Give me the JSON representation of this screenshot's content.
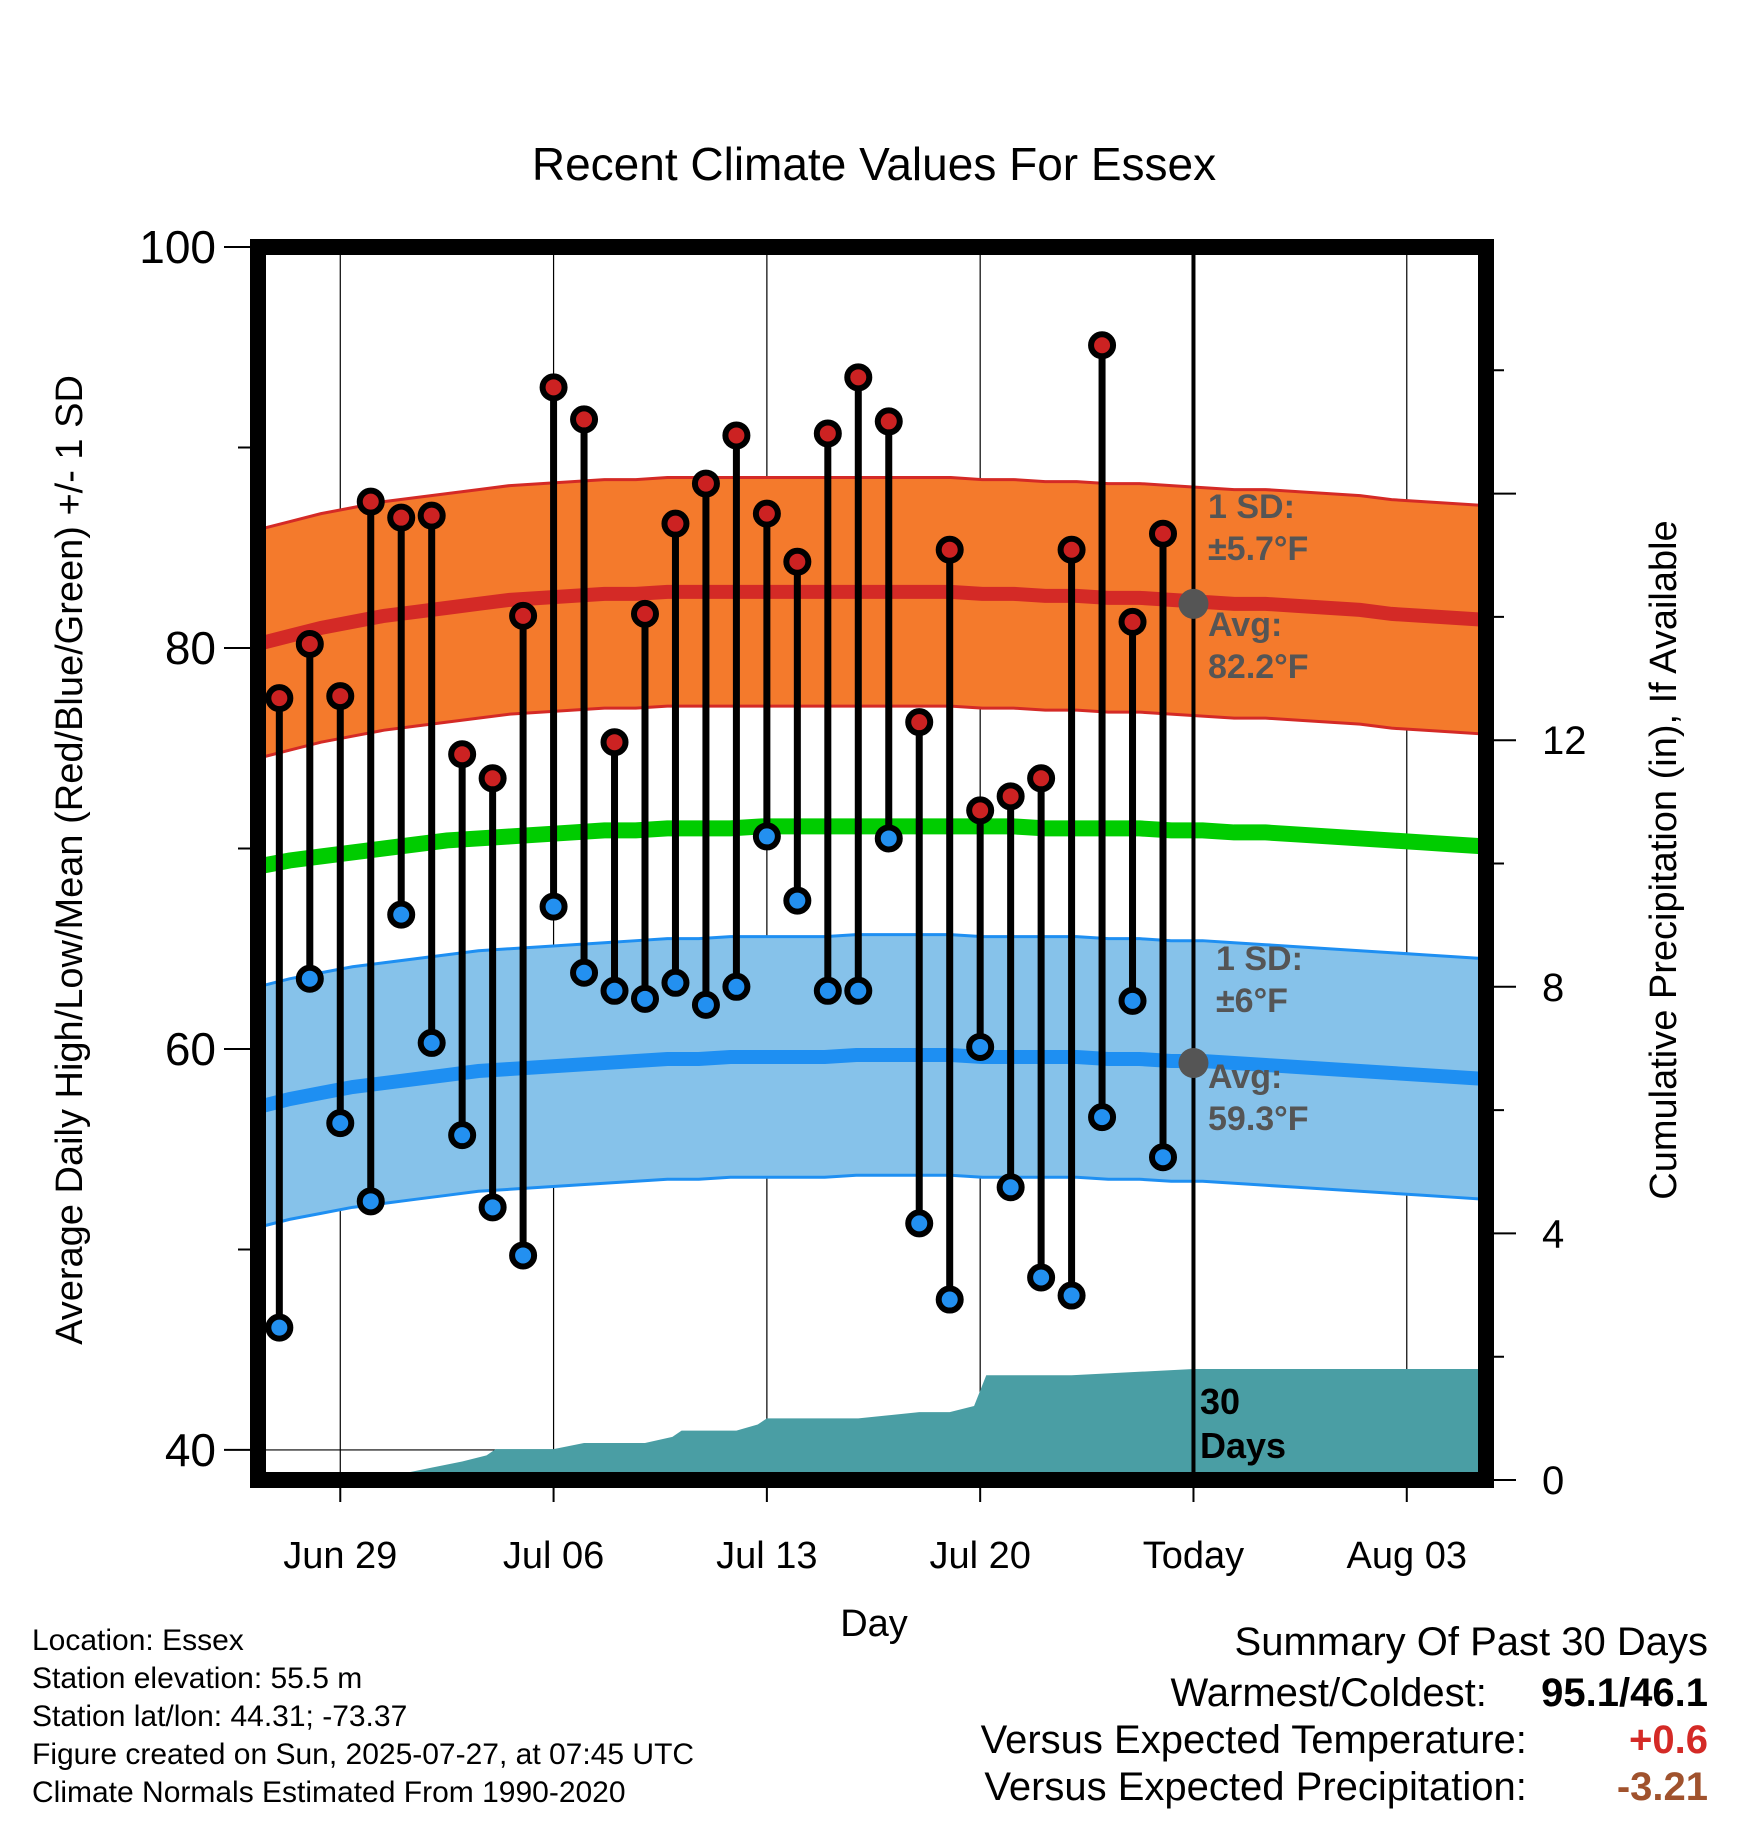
{
  "chart_data": {
    "type": "line",
    "title": "Recent Climate Values For Essex",
    "xlabel": "Day",
    "ylabel": "Average Daily High/Low/Mean (Red/Blue/Green) +/- 1 SD",
    "y2label": "Cumulative Precipitation (in), If Available",
    "ylim": [
      38.5,
      100
    ],
    "y2lim": [
      0,
      20
    ],
    "y_ticks": [
      40,
      60,
      80,
      100
    ],
    "y2_ticks": [
      0,
      4,
      8,
      12
    ],
    "x_tick_labels": [
      "Jun 29",
      "Jul 06",
      "Jul 13",
      "Jul 20",
      "Today",
      "Aug 03"
    ],
    "x_tick_days": [
      0,
      7,
      14,
      21,
      28,
      35
    ],
    "today_day": 28,
    "xlim": [
      -2.7,
      37.6
    ],
    "grid": true,
    "days": [
      -2,
      -1,
      0,
      1,
      2,
      3,
      4,
      5,
      6,
      7,
      8,
      9,
      10,
      11,
      12,
      13,
      14,
      15,
      16,
      17,
      18,
      19,
      20,
      21,
      22,
      23,
      24,
      25,
      26,
      27
    ],
    "daily_high": [
      77.5,
      80.2,
      77.6,
      87.3,
      86.5,
      86.6,
      74.7,
      73.5,
      81.6,
      93.0,
      91.4,
      75.3,
      81.7,
      86.2,
      88.2,
      90.6,
      86.7,
      84.3,
      90.7,
      93.5,
      91.3,
      76.3,
      84.9,
      71.9,
      72.6,
      73.5,
      84.9,
      95.1,
      81.3,
      85.7
    ],
    "daily_low": [
      46.1,
      63.5,
      56.3,
      52.4,
      66.7,
      60.3,
      55.7,
      52.1,
      49.7,
      67.1,
      63.8,
      62.9,
      62.5,
      63.3,
      62.2,
      63.1,
      70.6,
      67.4,
      62.9,
      62.9,
      70.5,
      51.3,
      47.5,
      60.1,
      53.1,
      48.6,
      47.7,
      56.6,
      62.4,
      54.6
    ],
    "normal_high": [
      80.2,
      80.6,
      81.0,
      81.3,
      81.6,
      81.8,
      82.0,
      82.2,
      82.4,
      82.5,
      82.6,
      82.7,
      82.7,
      82.8,
      82.8,
      82.8,
      82.8,
      82.8,
      82.8,
      82.8,
      82.8,
      82.8,
      82.8,
      82.7,
      82.7,
      82.6,
      82.6,
      82.5,
      82.5,
      82.4,
      82.3,
      82.2,
      82.2,
      82.1,
      82.0,
      81.9,
      81.7,
      81.6,
      81.5,
      81.4
    ],
    "high_sd": 5.7,
    "normal_mean": [
      69.1,
      69.4,
      69.6,
      69.8,
      70.0,
      70.2,
      70.4,
      70.5,
      70.6,
      70.7,
      70.8,
      70.9,
      70.9,
      71.0,
      71.0,
      71.0,
      71.1,
      71.1,
      71.1,
      71.1,
      71.1,
      71.1,
      71.1,
      71.1,
      71.1,
      71.0,
      71.0,
      71.0,
      71.0,
      70.9,
      70.9,
      70.8,
      70.8,
      70.7,
      70.6,
      70.5,
      70.4,
      70.3,
      70.2,
      70.1
    ],
    "normal_low": [
      57.1,
      57.5,
      57.8,
      58.1,
      58.3,
      58.5,
      58.7,
      58.9,
      59.0,
      59.1,
      59.2,
      59.3,
      59.4,
      59.5,
      59.5,
      59.6,
      59.6,
      59.6,
      59.6,
      59.7,
      59.7,
      59.7,
      59.7,
      59.6,
      59.6,
      59.6,
      59.6,
      59.5,
      59.5,
      59.4,
      59.4,
      59.3,
      59.2,
      59.1,
      59.0,
      58.9,
      58.8,
      58.7,
      58.6,
      58.5
    ],
    "low_sd": 6,
    "precip_days": [
      -2.7,
      1.0,
      2.0,
      3.0,
      4.0,
      4.8,
      5.1,
      7.0,
      8.0,
      9.0,
      10.0,
      10.9,
      11.2,
      12.0,
      13.0,
      13.7,
      14.0,
      17.0,
      19.0,
      20.0,
      20.8,
      21.2,
      24.0,
      28.0,
      37.6
    ],
    "precip_cumulative": [
      0.0,
      0.0,
      0.1,
      0.2,
      0.3,
      0.4,
      0.5,
      0.5,
      0.6,
      0.6,
      0.6,
      0.7,
      0.8,
      0.8,
      0.8,
      0.9,
      1.0,
      1.0,
      1.1,
      1.1,
      1.2,
      1.7,
      1.7,
      1.8,
      1.8
    ],
    "annotations": {
      "high_sd_label": "1 SD:",
      "high_sd_value": "±5.7°F",
      "high_avg_label": "Avg:",
      "high_avg_value": "82.2°F",
      "low_sd_label": "1 SD:",
      "low_sd_value": "±6°F",
      "low_avg_label": "Avg:",
      "low_avg_value": "59.3°F",
      "window_label_1": "30",
      "window_label_2": "Days",
      "today_high_avg": 82.2,
      "today_low_avg": 59.3
    }
  },
  "colors": {
    "high_band": "#f47a2c",
    "high_line": "#d42a26",
    "mean_line": "#00cc00",
    "low_band": "#86c2ea",
    "low_line": "#1e8ff2",
    "precip": "#4a9ea4",
    "high_dot": "#cc2222",
    "low_dot": "#2390f0",
    "annotation": "#555555",
    "anomaly_temp": "#d42a26",
    "anomaly_precip": "#a0522d"
  },
  "info": {
    "location": "Location: Essex",
    "elevation": "Station elevation: 55.5 m",
    "latlon": "Station lat/lon: 44.31; -73.37",
    "created": "Figure created on Sun, 2025-07-27, at 07:45 UTC",
    "normals": "Climate Normals Estimated From 1990-2020"
  },
  "summary": {
    "title": "Summary Of Past 30 Days",
    "warm_cold_label": "Warmest/Coldest:",
    "warm_cold_value": "95.1/46.1",
    "temp_label": "Versus Expected Temperature:",
    "temp_value": "+0.6",
    "precip_label": "Versus Expected Precipitation:",
    "precip_value": "-3.21"
  }
}
